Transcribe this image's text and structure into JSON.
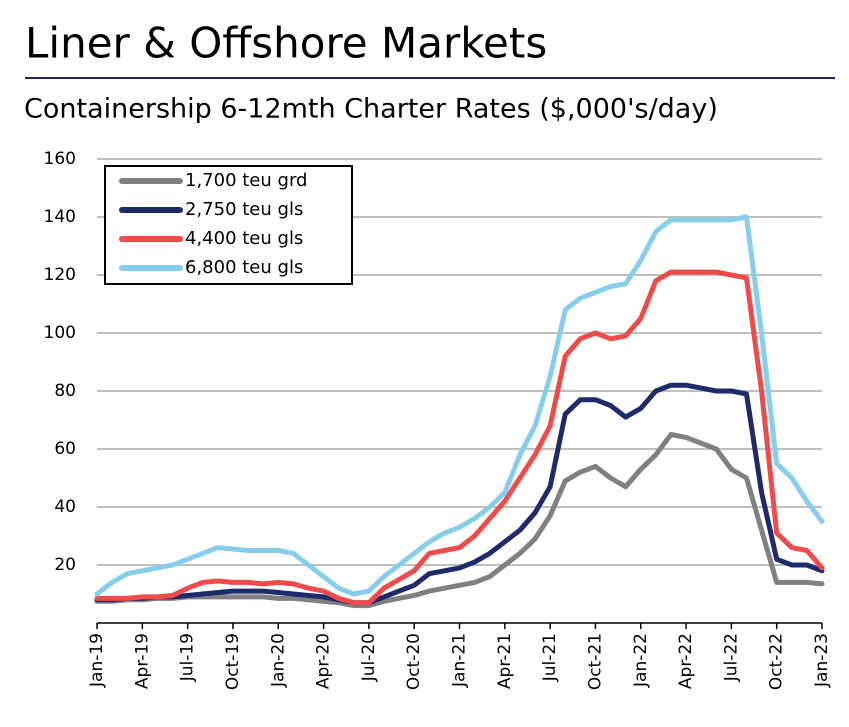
{
  "chart_data": {
    "type": "line",
    "title": "Liner & Offshore Markets",
    "subtitle": "Containership 6-12mth Charter Rates ($,000's/day)",
    "categories": [
      "Jan-19",
      null,
      null,
      "Apr-19",
      null,
      null,
      "Jul-19",
      null,
      null,
      "Oct-19",
      null,
      null,
      "Jan-20",
      null,
      null,
      "Apr-20",
      null,
      null,
      "Jul-20",
      null,
      null,
      "Oct-20",
      null,
      null,
      "Jan-21",
      null,
      null,
      "Apr-21",
      null,
      null,
      "Jul-21",
      null,
      null,
      "Oct-21",
      null,
      null,
      "Jan-22",
      null,
      null,
      "Apr-22",
      null,
      null,
      "Jul-22",
      null,
      null,
      "Oct-22",
      null,
      null,
      "Jan-23"
    ],
    "series": [
      {
        "name": "1,700 teu grd",
        "color": "#808080",
        "values": [
          7.5,
          7.5,
          8,
          8,
          8.5,
          8.5,
          9,
          9,
          9,
          9,
          9,
          9,
          8.5,
          8.5,
          8,
          7.5,
          7,
          6,
          6,
          7.5,
          8.5,
          9.5,
          11,
          12,
          13,
          14,
          16,
          20,
          24,
          29,
          37,
          49,
          52,
          54,
          50,
          47,
          53,
          58,
          65,
          64,
          62,
          60,
          53,
          50,
          32,
          14,
          14,
          14,
          13.5
        ]
      },
      {
        "name": "2,750 teu gls",
        "color": "#1f2a6b",
        "values": [
          8,
          8,
          8.5,
          8.5,
          9,
          9,
          9.5,
          10,
          10.5,
          11,
          11,
          11,
          10.5,
          10,
          9.5,
          9,
          8,
          7,
          7,
          9,
          11,
          13,
          17,
          18,
          19,
          21,
          24,
          28,
          32,
          38,
          47,
          72,
          77,
          77,
          75,
          71,
          74,
          80,
          82,
          82,
          81,
          80,
          80,
          79,
          45,
          22,
          20,
          20,
          18
        ]
      },
      {
        "name": "4,400 teu gls",
        "color": "#f04b4b",
        "values": [
          8.5,
          8.5,
          8.5,
          9,
          9,
          9.5,
          12,
          14,
          14.5,
          14,
          14,
          13.5,
          14,
          13.5,
          12,
          11,
          8.5,
          7,
          7,
          12,
          15,
          18,
          24,
          25,
          26,
          30,
          36,
          42,
          50,
          58,
          68,
          92,
          98,
          100,
          98,
          99,
          105,
          118,
          121,
          121,
          121,
          121,
          120,
          119,
          80,
          31,
          26,
          25,
          19
        ]
      },
      {
        "name": "6,800 teu gls",
        "color": "#87ceeb",
        "values": [
          10,
          14,
          17,
          18,
          19,
          20,
          22,
          24,
          26,
          25.5,
          25,
          25,
          25,
          24,
          20,
          16,
          12,
          10,
          11,
          16,
          20,
          24,
          28,
          31,
          33,
          36,
          40,
          45,
          58,
          68,
          85,
          108,
          112,
          114,
          116,
          117,
          125,
          135,
          139,
          139,
          139,
          139,
          139,
          140,
          100,
          55,
          50,
          42,
          35
        ]
      }
    ],
    "ylim": [
      0,
      160
    ],
    "yticks": [
      20,
      40,
      60,
      80,
      100,
      120,
      140,
      160
    ],
    "grid": true,
    "legend": "upper left"
  }
}
